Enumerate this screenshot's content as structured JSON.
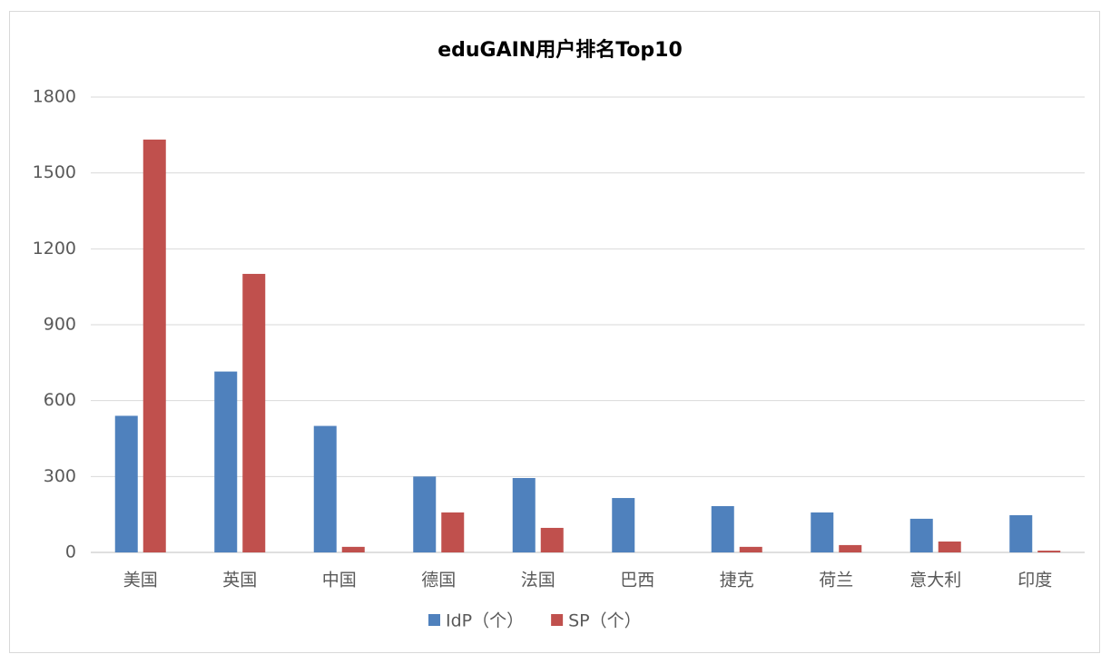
{
  "chart_data": {
    "type": "bar",
    "title": "eduGAIN用户排名Top10",
    "categories": [
      "美国",
      "英国",
      "中国",
      "德国",
      "法国",
      "巴西",
      "捷克",
      "荷兰",
      "意大利",
      "印度"
    ],
    "series": [
      {
        "name": "IdP（个）",
        "color": "#4f81bd",
        "values": [
          540,
          715,
          500,
          300,
          294,
          215,
          183,
          158,
          133,
          147
        ]
      },
      {
        "name": "SP（个）",
        "color": "#c0504d",
        "values": [
          1632,
          1101,
          22,
          158,
          97,
          0,
          22,
          29,
          43,
          7
        ]
      }
    ],
    "ylim": [
      0,
      1800
    ],
    "yticks": [
      0,
      300,
      600,
      900,
      1200,
      1500,
      1800
    ],
    "grid": true,
    "legend": "bottom"
  }
}
